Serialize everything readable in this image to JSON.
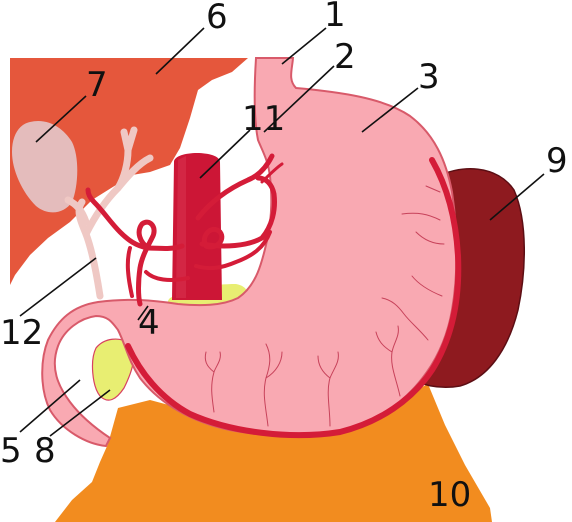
{
  "labels": [
    {
      "id": "1",
      "text": "1"
    },
    {
      "id": "2",
      "text": "2"
    },
    {
      "id": "3",
      "text": "3"
    },
    {
      "id": "4",
      "text": "4"
    },
    {
      "id": "5",
      "text": "5"
    },
    {
      "id": "6",
      "text": "6"
    },
    {
      "id": "7",
      "text": "7"
    },
    {
      "id": "8",
      "text": "8"
    },
    {
      "id": "9",
      "text": "9"
    },
    {
      "id": "10",
      "text": "10"
    },
    {
      "id": "11",
      "text": "11"
    },
    {
      "id": "12",
      "text": "12"
    }
  ],
  "colors": {
    "liver": "#e5573c",
    "gallbladder": "#e8bcbc",
    "stomach": "#f9a9b2",
    "stomach_outline": "#d85a6a",
    "artery": "#d41c38",
    "aorta": "#cc1636",
    "spleen": "#8e1a1f",
    "pancreas": "#f28c1f",
    "duodenal_fat": "#e6ec70",
    "bile_duct": "#efc4c0"
  }
}
